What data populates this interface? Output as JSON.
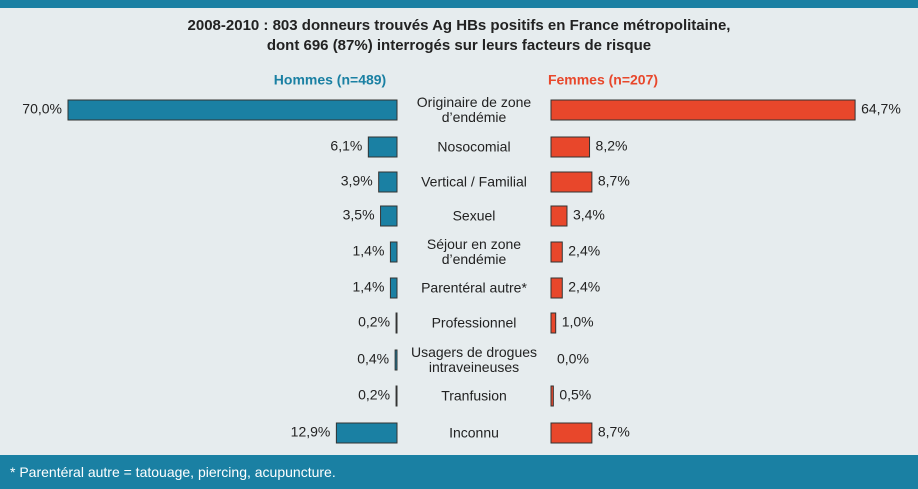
{
  "chart_data": {
    "type": "butterfly",
    "title": "2008-2010 : 803 donneurs trouvés Ag HBs positifs en France métropolitaine,\ndont 696 (87%) interrogés sur leurs facteurs de risque",
    "categories": [
      "Originaire de zone\nd’endémie",
      "Nosocomial",
      "Vertical / Familial",
      "Sexuel",
      "Séjour en zone\nd’endémie",
      "Parentéral autre*",
      "Professionnel",
      "Usagers de drogues\nintraveineuses",
      "Tranfusion",
      "Inconnu"
    ],
    "series": [
      {
        "name": "Hommes (n=489)",
        "color": "#1a80a3",
        "values": [
          70.0,
          6.1,
          3.9,
          3.5,
          1.4,
          1.4,
          0.2,
          0.4,
          0.2,
          12.9
        ],
        "value_labels": [
          "70,0%",
          "6,1%",
          "3,9%",
          "3,5%",
          "1,4%",
          "1,4%",
          "0,2%",
          "0,4%",
          "0,2%",
          "12,9%"
        ]
      },
      {
        "name": "Femmes (n=207)",
        "color": "#e8472b",
        "values": [
          64.7,
          8.2,
          8.7,
          3.4,
          2.4,
          2.4,
          1.0,
          0.0,
          0.5,
          8.7
        ],
        "value_labels": [
          "64,7%",
          "8,2%",
          "8,7%",
          "3,4%",
          "2,4%",
          "2,4%",
          "1,0%",
          "0,0%",
          "0,5%",
          "8,7%"
        ]
      }
    ],
    "footnote": "* Parentéral autre = tatouage, piercing, acupuncture."
  }
}
